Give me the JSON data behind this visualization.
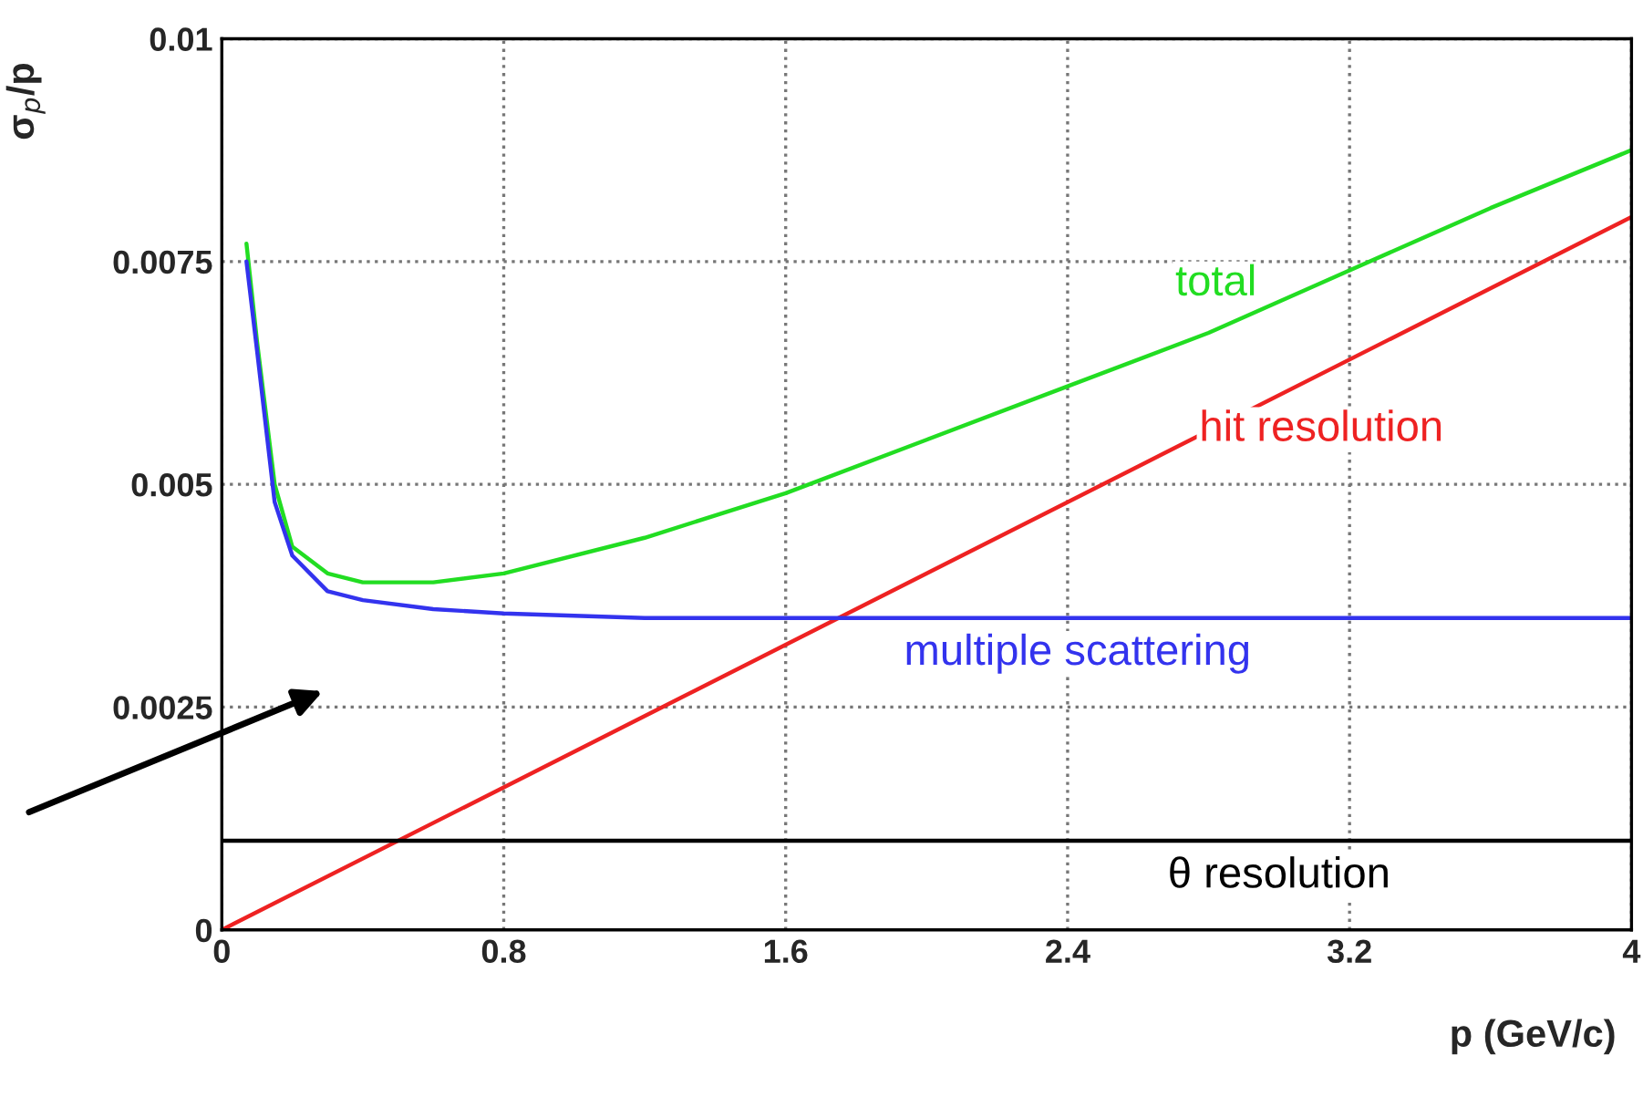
{
  "chart_data": {
    "type": "line",
    "ylabel": "σ$_{p}$/p",
    "xlabel": "p (GeV/c)",
    "xlim": [
      0,
      4
    ],
    "xticks": [
      0,
      0.8,
      1.6,
      2.4,
      3.2,
      4
    ],
    "ylim": [
      0,
      0.01
    ],
    "yticks": [
      0,
      0.0025,
      0.005,
      0.0075,
      0.01
    ],
    "grid": true,
    "legend": false,
    "marker": "none",
    "line_style": "solid",
    "series": [
      {
        "name": "total",
        "color": "#22dd22",
        "x": [
          0.07,
          0.1,
          0.15,
          0.2,
          0.3,
          0.4,
          0.5,
          0.6,
          0.8,
          1.2,
          1.6,
          2.0,
          2.4,
          2.8,
          3.2,
          3.6,
          4.0
        ],
        "values": [
          0.0077,
          0.0066,
          0.005,
          0.0043,
          0.004,
          0.0039,
          0.0039,
          0.0039,
          0.004,
          0.0044,
          0.0049,
          0.0055,
          0.0061,
          0.0067,
          0.0074,
          0.0081,
          0.00875
        ]
      },
      {
        "name": "hit resolution",
        "color": "#ee2222",
        "x": [
          0,
          4
        ],
        "values": [
          0,
          0.008
        ]
      },
      {
        "name": "multiple scattering",
        "color": "#3333ee",
        "x": [
          0.07,
          0.1,
          0.15,
          0.2,
          0.3,
          0.4,
          0.6,
          0.8,
          1.2,
          4.0
        ],
        "values": [
          0.0075,
          0.0065,
          0.0048,
          0.0042,
          0.0038,
          0.0037,
          0.0036,
          0.00355,
          0.0035,
          0.0035
        ]
      },
      {
        "name": "θ resolution",
        "color": "#000000",
        "x": [
          0,
          4
        ],
        "values": [
          0.001,
          0.001
        ]
      }
    ]
  }
}
